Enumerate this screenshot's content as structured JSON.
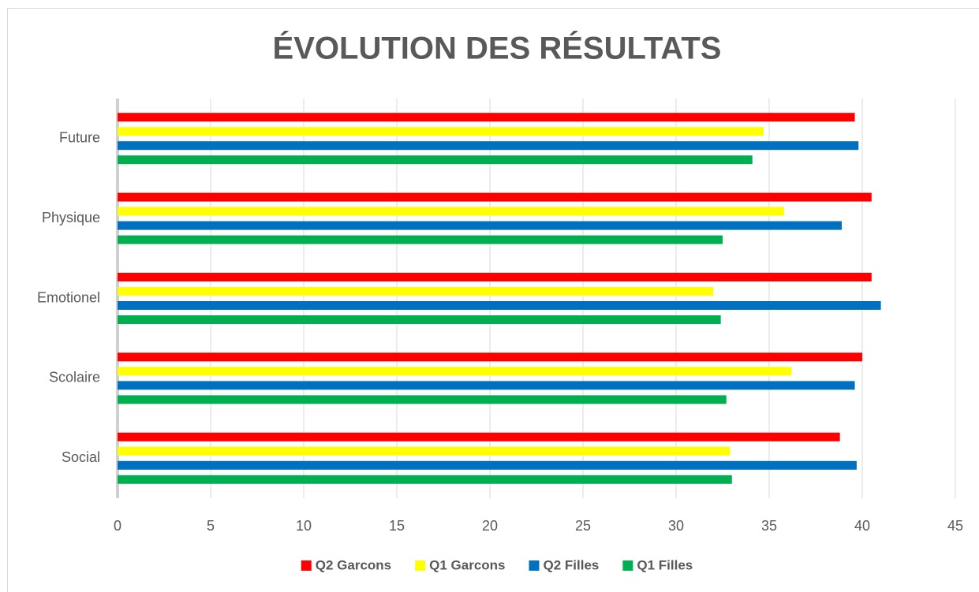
{
  "chart_data": {
    "type": "hbar",
    "title": "ÉVOLUTION DES RÉSULTATS",
    "categories": [
      "Social",
      "Scolaire",
      "Emotionel",
      "Physique",
      "Future"
    ],
    "series": [
      {
        "name": "Q2 Garcons",
        "color": "#ff0000",
        "values": [
          38.8,
          40,
          40.5,
          40.5,
          39.6
        ]
      },
      {
        "name": "Q1 Garcons",
        "color": "#ffff00",
        "values": [
          32.9,
          36.2,
          32.0,
          35.8,
          34.7
        ]
      },
      {
        "name": "Q2 Filles",
        "color": "#0070c0",
        "values": [
          39.7,
          39.6,
          41.0,
          38.9,
          39.8
        ]
      },
      {
        "name": "Q1 Filles",
        "color": "#00b050",
        "values": [
          33.0,
          32.7,
          32.4,
          32.5,
          34.1
        ]
      }
    ],
    "xlim": [
      0,
      45
    ],
    "xticks": [
      0,
      5,
      10,
      15,
      20,
      25,
      30,
      35,
      40,
      45
    ],
    "grid": true,
    "legend": "bottom"
  }
}
